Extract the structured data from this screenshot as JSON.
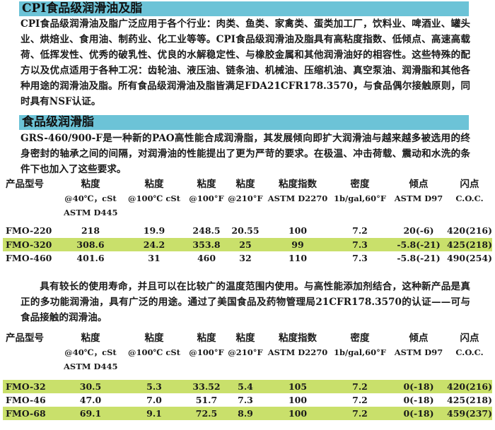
{
  "section1": {
    "title": "CPI食品级润滑油及脂",
    "text": "CPI食品级润滑油及脂广泛应用于各个行业：肉类、鱼类、家禽类、蛋类加工厂，饮料业、啤酒业、罐头业、烘焙业、食用油、制药业、化工业等等。CPI食品级润滑油及脂具有高粘度指数、低倾点、高速高载荷、低挥发性、优秀的破乳性、优良的水解稳定性、与橡胶金属和其他润滑油好的相容性。这些特殊的配方以及优点适用于各种工况：齿轮油、液压油、链条油、机械油、压缩机油、真空泵油、润滑脂和其他各种用途的润滑油及脂。所有食品级润滑油及脂皆满足FDA21CFR178.3570，与食品偶尔接触原则，同时具有NSF认证。"
  },
  "section2": {
    "title": "食品级润滑脂",
    "text": "GRS-460/900-F是一种新的PAO高性能合成润滑脂，其发展倾向即扩大润滑油与越来越多被选用的终身密封的轴承之间的间隔，对润滑油的性能提出了更为严苛的要求。在极温、冲击荷载、震动和水洗的条件下也加入了这些要求。"
  },
  "columns": [
    {
      "name": "产品型号",
      "sub": []
    },
    {
      "name": "粘度",
      "sub": [
        "@40℃，cSt",
        "ASTM D445"
      ]
    },
    {
      "name": "粘度",
      "sub": [
        "@100℃ cSt"
      ]
    },
    {
      "name": "粘度",
      "sub": [
        "@100°F"
      ]
    },
    {
      "name": "粘度",
      "sub": [
        "@210°F"
      ]
    },
    {
      "name": "粘度指数",
      "sub": [
        "ASTM D2270"
      ]
    },
    {
      "name": "密度",
      "sub": [
        "1b/gal,60°F"
      ]
    },
    {
      "name": "倾点",
      "sub": [
        "ASTM D97"
      ]
    },
    {
      "name": "闪点",
      "sub": [
        "C.O.C."
      ]
    }
  ],
  "table1": [
    [
      "FMO-220",
      "218",
      "19.9",
      "248.5",
      "20.55",
      "100",
      "7.2",
      "20(-6)",
      "420(216)"
    ],
    [
      "FMO-320",
      "308.6",
      "24.2",
      "353.8",
      "25",
      "99",
      "7.3",
      "-5.8(-21)",
      "425(218)"
    ],
    [
      "FMO-460",
      "401.6",
      "31",
      "460",
      "32",
      "110",
      "7.3",
      "-5.8(-21)",
      "490(254)"
    ]
  ],
  "section3": {
    "text": "具有较长的使用寿命，并且可以在比较广的温度范围内使用。与高性能添加剂结合，这种新产品是真正的多功能润滑油，具有广泛的用途。通过了美国食品及药物管理局21CFR178.3570的认证——可与食品接触的润滑油。"
  },
  "table2": [
    [
      "FMO-32",
      "30.5",
      "5.3",
      "33.52",
      "5.4",
      "105",
      "7.2",
      "0(-18)",
      "420(216)"
    ],
    [
      "FMO-46",
      "47.0",
      "7.0",
      "51.7",
      "7.3",
      "100",
      "7.2",
      "0(-18)",
      "425(218)"
    ],
    [
      "FMO-68",
      "69.1",
      "9.1",
      "72.5",
      "8.9",
      "100",
      "7.2",
      "0(-18)",
      "459(237)"
    ]
  ],
  "colors": {
    "header_bar": "#6cc3d7",
    "row_highlight": "#c9e06b"
  }
}
